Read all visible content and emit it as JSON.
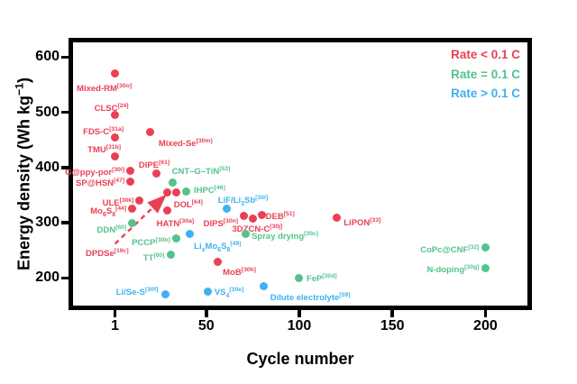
{
  "chart_data": {
    "type": "scatter",
    "title": "",
    "xlabel": "Cycle number",
    "ylabel": "Energy density (Wh kg^−1^)",
    "x_ticks": [
      1,
      50,
      100,
      150,
      200
    ],
    "y_ticks": [
      600,
      500,
      400,
      300,
      200
    ],
    "xlim": [
      -24,
      225
    ],
    "ylim": [
      142,
      635
    ],
    "grid": false,
    "legend": {
      "position": "top-right",
      "entries": [
        {
          "label": "Rate < 0.1 C",
          "color": "#e94054"
        },
        {
          "label": "Rate = 0.1 C",
          "color": "#53c28d"
        },
        {
          "label": "Rate > 0.1 C",
          "color": "#3fb0f0"
        }
      ]
    },
    "series": [
      {
        "name": "Rate < 0.1 C",
        "color": "#e94054",
        "points": [
          {
            "label": "Mixed-RM",
            "ref": "30o",
            "cycle": 1,
            "energy": 570,
            "lp": {
              "anchor": "middle",
              "dx": -12,
              "dy": 14
            }
          },
          {
            "label": "CLSC",
            "ref": "24",
            "cycle": 1,
            "energy": 495,
            "lp": {
              "anchor": "middle",
              "dx": -4,
              "dy": -10
            }
          },
          {
            "label": "FDS-C",
            "ref": "31a",
            "cycle": 1,
            "energy": 455,
            "lp": {
              "anchor": "middle",
              "dx": -13,
              "dy": -8
            }
          },
          {
            "label": "TMU",
            "ref": "31b",
            "cycle": 1,
            "energy": 420,
            "lp": {
              "anchor": "middle",
              "dx": -12,
              "dy": -10
            }
          },
          {
            "label": "Mixed-Se",
            "ref": "30m",
            "cycle": 20,
            "energy": 465,
            "lp": {
              "anchor": "middle",
              "dx": 39,
              "dy": 11
            }
          },
          {
            "label": "G@ppy-por",
            "ref": "30l",
            "cycle": 9,
            "energy": 395,
            "lp": {
              "anchor": "end",
              "dx": -6,
              "dy": 0
            }
          },
          {
            "label": "DIPE",
            "ref": "61",
            "cycle": 23,
            "energy": 390,
            "lp": {
              "anchor": "middle",
              "dx": -2,
              "dy": -11
            }
          },
          {
            "label": "SP@HSN",
            "ref": "47",
            "cycle": 9,
            "energy": 375,
            "lp": {
              "anchor": "end",
              "dx": -6,
              "dy": 0
            }
          },
          {
            "label": "ULE",
            "ref": "30k",
            "cycle": 14,
            "energy": 340,
            "lp": {
              "anchor": "end",
              "dx": -6,
              "dy": 0
            }
          },
          {
            "label": "Mo~6~S~8~",
            "ref": "44",
            "cycle": 10,
            "energy": 325,
            "lp": {
              "anchor": "end",
              "dx": -6,
              "dy": 0
            }
          },
          {
            "label": "",
            "ref": "",
            "cycle": 29,
            "energy": 355
          },
          {
            "label": "DOL",
            "ref": "64",
            "cycle": 34,
            "energy": 355,
            "lp": {
              "anchor": "start",
              "dx": -3,
              "dy": 11
            }
          },
          {
            "label": "HATN",
            "ref": "30a",
            "cycle": 29,
            "energy": 322,
            "lp": {
              "anchor": "middle",
              "dx": 9,
              "dy": 12
            }
          },
          {
            "label": "DIPS",
            "ref": "30n",
            "cycle": 70,
            "energy": 312,
            "lp": {
              "anchor": "end",
              "dx": -6,
              "dy": 6
            }
          },
          {
            "label": "3DZCN-C",
            "ref": "30j",
            "cycle": 75,
            "energy": 308,
            "lp": {
              "anchor": "middle",
              "dx": 5,
              "dy": 10
            }
          },
          {
            "label": "DEB",
            "ref": "51",
            "cycle": 80,
            "energy": 315,
            "lp": {
              "anchor": "start",
              "dx": 4,
              "dy": 0
            }
          },
          {
            "label": "MoB",
            "ref": "30h",
            "cycle": 56,
            "energy": 230,
            "lp": {
              "anchor": "start",
              "dx": 6,
              "dy": 10
            }
          },
          {
            "label": "LiPON",
            "ref": "33",
            "cycle": 120,
            "energy": 310,
            "lp": {
              "anchor": "start",
              "dx": 8,
              "dy": 4
            }
          },
          {
            "label": "DPDSe",
            "ref": "19c",
            "cycle": 1,
            "energy": 248,
            "marker": false,
            "lp": {
              "anchor": "end",
              "dx": 15,
              "dy": 0
            }
          }
        ]
      },
      {
        "name": "Rate = 0.1 C",
        "color": "#53c28d",
        "points": [
          {
            "label": "CNT–G–TiN",
            "ref": "53",
            "cycle": 32,
            "energy": 373,
            "lp": {
              "anchor": "start",
              "dx": -1,
              "dy": -14
            }
          },
          {
            "label": "IHPC",
            "ref": "46",
            "cycle": 39,
            "energy": 356,
            "lp": {
              "anchor": "start",
              "dx": 9,
              "dy": -4
            }
          },
          {
            "label": "DDN",
            "ref": "60",
            "cycle": 10,
            "energy": 300,
            "lp": {
              "anchor": "end",
              "dx": -6,
              "dy": 6
            }
          },
          {
            "label": "PCCP",
            "ref": "30b",
            "cycle": 34,
            "energy": 272,
            "lp": {
              "anchor": "end",
              "dx": -7,
              "dy": 3
            }
          },
          {
            "label": "TT",
            "ref": "60",
            "cycle": 31,
            "energy": 243,
            "lp": {
              "anchor": "end",
              "dx": -7,
              "dy": 2
            }
          },
          {
            "label": "Spray drying",
            "ref": "30c",
            "cycle": 71,
            "energy": 280,
            "lp": {
              "anchor": "start",
              "dx": 7,
              "dy": 1
            }
          },
          {
            "label": "FeP",
            "ref": "30d",
            "cycle": 100,
            "energy": 200,
            "lp": {
              "anchor": "start",
              "dx": 8,
              "dy": -1
            }
          },
          {
            "label": "CoPc@CNF",
            "ref": "32",
            "cycle": 200,
            "energy": 255,
            "lp": {
              "anchor": "end",
              "dx": -7,
              "dy": 0
            }
          },
          {
            "label": "N-doping",
            "ref": "30g",
            "cycle": 200,
            "energy": 218,
            "lp": {
              "anchor": "end",
              "dx": -7,
              "dy": 0
            }
          }
        ]
      },
      {
        "name": "Rate > 0.1 C",
        "color": "#3fb0f0",
        "points": [
          {
            "label": "LiF/Li~3~Sb",
            "ref": "30i",
            "cycle": 61,
            "energy": 325,
            "lp": {
              "anchor": "middle",
              "dx": 18,
              "dy": -12
            }
          },
          {
            "label": "Li~x~Mo~6~S~8~",
            "ref": "49",
            "cycle": 41,
            "energy": 280,
            "lp": {
              "anchor": "start",
              "dx": 5,
              "dy": 12
            }
          },
          {
            "label": "Li/Se-S",
            "ref": "30f",
            "cycle": 28,
            "energy": 170,
            "lp": {
              "anchor": "end",
              "dx": -8,
              "dy": -5
            }
          },
          {
            "label": "VS~4~",
            "ref": "30e",
            "cycle": 51,
            "energy": 176,
            "lp": {
              "anchor": "start",
              "dx": 7,
              "dy": -1
            }
          },
          {
            "label": "Dilute electrolyte",
            "ref": "59",
            "cycle": 81,
            "energy": 185,
            "lp": {
              "anchor": "start",
              "dx": 7,
              "dy": 10
            }
          }
        ]
      }
    ],
    "annotations": [
      {
        "type": "dashed_arrow",
        "color": "#e94054",
        "from": {
          "cycle": 1,
          "energy": 262
        },
        "to": {
          "cycle": 27,
          "energy": 346
        }
      }
    ]
  }
}
